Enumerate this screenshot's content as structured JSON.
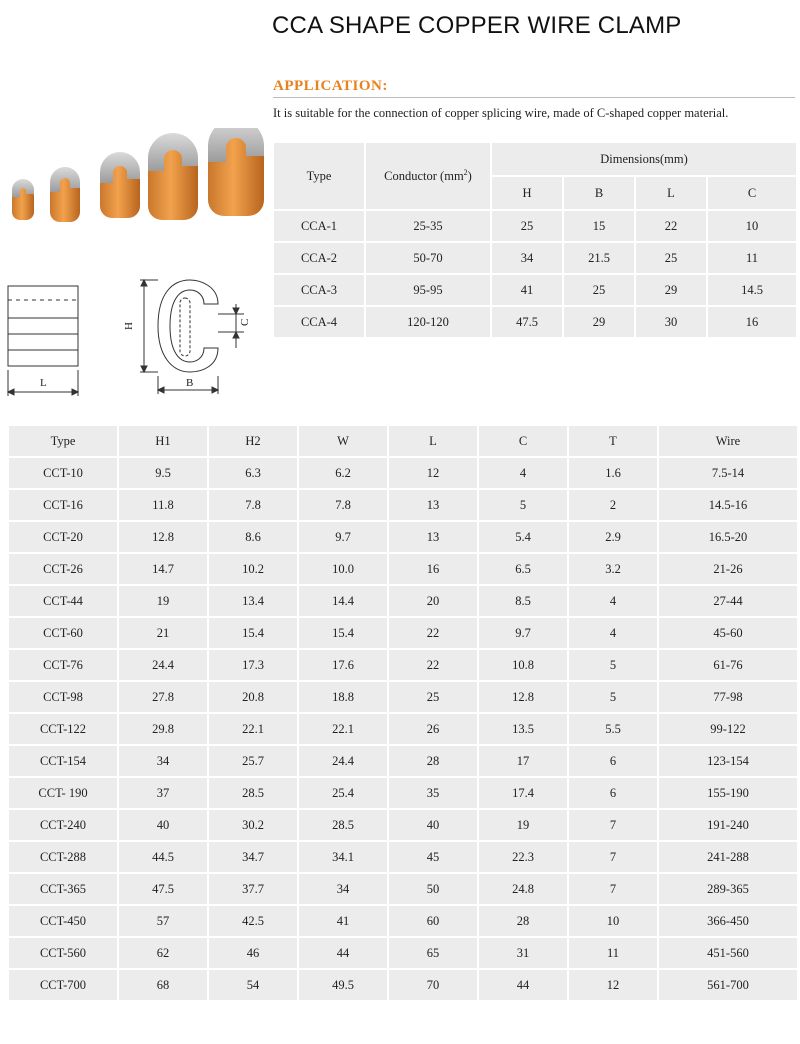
{
  "title": "CCA SHAPE COPPER WIRE CLAMP",
  "application": {
    "heading": "APPLICATION:",
    "text": "It is suitable for the connection of copper splicing wire, made of C-shaped copper material."
  },
  "diagram_labels": {
    "L": "L",
    "H": "H",
    "B": "B",
    "C": "C"
  },
  "cca_table": {
    "type_header": "Type",
    "conductor_header": "Conductor (mm",
    "conductor_sup": "2",
    "conductor_close": ")",
    "dimensions_header": "Dimensions(mm)",
    "dim_cols": [
      "H",
      "B",
      "L",
      "C"
    ],
    "rows": [
      [
        "CCA-1",
        "25-35",
        "25",
        "15",
        "22",
        "10"
      ],
      [
        "CCA-2",
        "50-70",
        "34",
        "21.5",
        "25",
        "11"
      ],
      [
        "CCA-3",
        "95-95",
        "41",
        "25",
        "29",
        "14.5"
      ],
      [
        "CCA-4",
        "120-120",
        "47.5",
        "29",
        "30",
        "16"
      ]
    ]
  },
  "cct_table": {
    "headers": [
      "Type",
      "H1",
      "H2",
      "W",
      "L",
      "C",
      "T",
      "Wire"
    ],
    "rows": [
      [
        "CCT-10",
        "9.5",
        "6.3",
        "6.2",
        "12",
        "4",
        "1.6",
        "7.5-14"
      ],
      [
        "CCT-16",
        "11.8",
        "7.8",
        "7.8",
        "13",
        "5",
        "2",
        "14.5-16"
      ],
      [
        "CCT-20",
        "12.8",
        "8.6",
        "9.7",
        "13",
        "5.4",
        "2.9",
        "16.5-20"
      ],
      [
        "CCT-26",
        "14.7",
        "10.2",
        "10.0",
        "16",
        "6.5",
        "3.2",
        "21-26"
      ],
      [
        "CCT-44",
        "19",
        "13.4",
        "14.4",
        "20",
        "8.5",
        "4",
        "27-44"
      ],
      [
        "CCT-60",
        "21",
        "15.4",
        "15.4",
        "22",
        "9.7",
        "4",
        "45-60"
      ],
      [
        "CCT-76",
        "24.4",
        "17.3",
        "17.6",
        "22",
        "10.8",
        "5",
        "61-76"
      ],
      [
        "CCT-98",
        "27.8",
        "20.8",
        "18.8",
        "25",
        "12.8",
        "5",
        "77-98"
      ],
      [
        "CCT-122",
        "29.8",
        "22.1",
        "22.1",
        "26",
        "13.5",
        "5.5",
        "99-122"
      ],
      [
        "CCT-154",
        "34",
        "25.7",
        "24.4",
        "28",
        "17",
        "6",
        "123-154"
      ],
      [
        "CCT- 190",
        "37",
        "28.5",
        "25.4",
        "35",
        "17.4",
        "6",
        "155-190"
      ],
      [
        "CCT-240",
        "40",
        "30.2",
        "28.5",
        "40",
        "19",
        "7",
        "191-240"
      ],
      [
        "CCT-288",
        "44.5",
        "34.7",
        "34.1",
        "45",
        "22.3",
        "7",
        "241-288"
      ],
      [
        "CCT-365",
        "47.5",
        "37.7",
        "34",
        "50",
        "24.8",
        "7",
        "289-365"
      ],
      [
        "CCT-450",
        "57",
        "42.5",
        "41",
        "60",
        "28",
        "10",
        "366-450"
      ],
      [
        "CCT-560",
        "62",
        "46",
        "44",
        "65",
        "31",
        "11",
        "451-560"
      ],
      [
        "CCT-700",
        "68",
        "54",
        "49.5",
        "70",
        "44",
        "12",
        "561-700"
      ]
    ]
  }
}
